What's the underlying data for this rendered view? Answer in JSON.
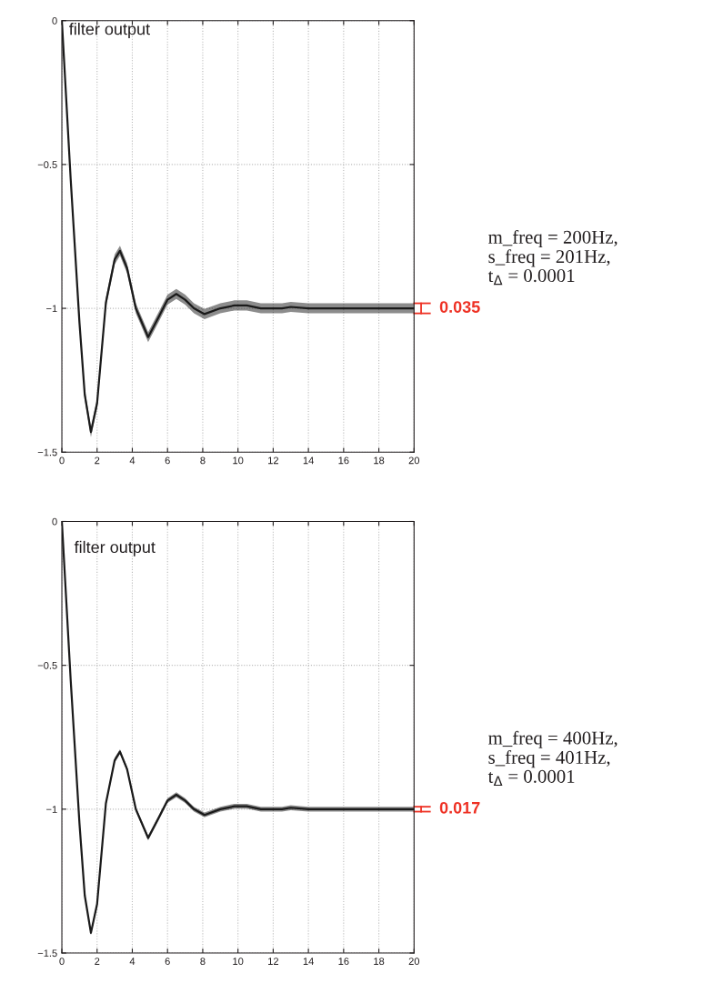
{
  "chart_data": [
    {
      "type": "line",
      "x": [
        0,
        0.5,
        1.0,
        1.3,
        1.65,
        2.0,
        2.5,
        3.0,
        3.3,
        3.7,
        4.2,
        4.9,
        5.5,
        6.0,
        6.5,
        7.0,
        7.5,
        8.1,
        9.0,
        9.8,
        10.5,
        11.3,
        12.5,
        13.0,
        14.0,
        20.0
      ],
      "series": [
        {
          "color": "#1a1a1a",
          "values": [
            0,
            -0.55,
            -1.05,
            -1.3,
            -1.43,
            -1.33,
            -0.98,
            -0.83,
            -0.8,
            -0.86,
            -1.0,
            -1.1,
            -1.03,
            -0.97,
            -0.95,
            -0.97,
            -1.0,
            -1.02,
            -1.0,
            -0.99,
            -0.99,
            -1.0,
            -1.0,
            -0.995,
            -1.0,
            -1.0
          ],
          "lower": [
            -0.0175,
            -0.5675,
            -1.0675,
            -1.3175,
            -1.4475,
            -1.3475,
            -0.9975,
            -0.8475,
            -0.8175,
            -0.8775,
            -1.0175,
            -1.1175,
            -1.0475,
            -0.9875,
            -0.9675,
            -0.9875,
            -1.0175,
            -1.0375,
            -1.0175,
            -1.0075,
            -1.0075,
            -1.0175,
            -1.0175,
            -1.0125,
            -1.0175,
            -1.0175
          ],
          "upper": [
            0,
            -0.5325,
            -1.0325,
            -1.2825,
            -1.4125,
            -1.3125,
            -0.9625,
            -0.8125,
            -0.7825,
            -0.8425,
            -0.9825,
            -1.0825,
            -1.0125,
            -0.9525,
            -0.9325,
            -0.9525,
            -0.9825,
            -1.0025,
            -0.9825,
            -0.9725,
            -0.9725,
            -0.9825,
            -0.9825,
            -0.9775,
            -0.9825,
            -0.9825
          ]
        }
      ],
      "xlim": [
        0,
        20
      ],
      "xticks": [
        0,
        2,
        4,
        6,
        8,
        10,
        12,
        14,
        16,
        18,
        20
      ],
      "ylim": [
        -1.5,
        0
      ],
      "yticks": [
        {
          "value": -1.5,
          "label": "−1.5"
        },
        {
          "value": -1,
          "label": "−1"
        },
        {
          "value": -0.5,
          "label": "−0.5"
        },
        0
      ],
      "grid": true,
      "line_style": "solid",
      "legend": false,
      "annotations": [
        "filter output",
        {
          "text": "0.035",
          "x": 20,
          "y": -1
        },
        "m_freq = 200Hz,\ns_freq = 201Hz,\nt$_{Δ}$ = 0.0001"
      ]
    },
    {
      "type": "line",
      "x": [
        0,
        0.5,
        1.0,
        1.3,
        1.65,
        2.0,
        2.5,
        3.0,
        3.3,
        3.7,
        4.2,
        4.9,
        5.5,
        6.0,
        6.5,
        7.0,
        7.5,
        8.1,
        9.0,
        9.8,
        10.5,
        11.3,
        12.5,
        13.0,
        14.0,
        20.0
      ],
      "series": [
        {
          "color": "#1a1a1a",
          "values": [
            0,
            -0.55,
            -1.05,
            -1.3,
            -1.43,
            -1.33,
            -0.98,
            -0.83,
            -0.8,
            -0.86,
            -1.0,
            -1.1,
            -1.03,
            -0.97,
            -0.95,
            -0.97,
            -1.0,
            -1.02,
            -1.0,
            -0.99,
            -0.99,
            -1.0,
            -1.0,
            -0.995,
            -1.0,
            -1.0
          ],
          "lower": [
            -0.0085,
            -0.5585,
            -1.0585,
            -1.3085,
            -1.4385,
            -1.3385,
            -0.9885,
            -0.8385,
            -0.8085,
            -0.8685,
            -1.0085,
            -1.1085,
            -1.0385,
            -0.9785,
            -0.9585,
            -0.9785,
            -1.0085,
            -1.0285,
            -1.0085,
            -0.9985,
            -0.9985,
            -1.0085,
            -1.0085,
            -1.0035,
            -1.0085,
            -1.0085
          ],
          "upper": [
            0,
            -0.5415,
            -1.0415,
            -1.2915,
            -1.4215,
            -1.3215,
            -0.9715,
            -0.8215,
            -0.7915,
            -0.8515,
            -0.9915,
            -1.0915,
            -1.0215,
            -0.9615,
            -0.9415,
            -0.9615,
            -0.9915,
            -1.0115,
            -0.9915,
            -0.9815,
            -0.9815,
            -0.9915,
            -0.9915,
            -0.9865,
            -0.9915,
            -0.9915
          ]
        }
      ],
      "xlim": [
        0,
        20
      ],
      "xticks": [
        0,
        2,
        4,
        6,
        8,
        10,
        12,
        14,
        16,
        18,
        20
      ],
      "ylim": [
        -1.5,
        0
      ],
      "yticks": [
        {
          "value": -1.5,
          "label": "−1.5"
        },
        {
          "value": -1,
          "label": "−1"
        },
        {
          "value": -0.5,
          "label": "−0.5"
        },
        0
      ],
      "grid": true,
      "line_style": "solid",
      "legend": false,
      "annotations": [
        "filter output",
        {
          "text": "0.017",
          "x": 20,
          "y": -1
        },
        "m_freq = 400Hz,\ns_freq = 401Hz,\nt$_{Δ}$ = 0.0001"
      ]
    }
  ]
}
